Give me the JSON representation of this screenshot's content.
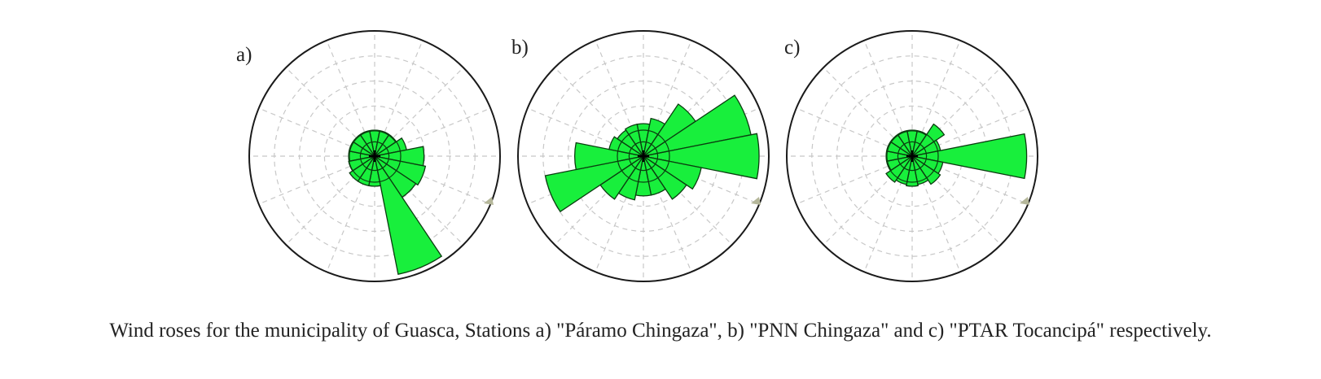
{
  "figure": {
    "caption": "Wind roses for the municipality of Guasca, Stations a) \"Páramo Chingaza\", b) \"PNN Chingaza\" and c) \"PTAR Tocancipá\" respectively."
  },
  "colors": {
    "petal_fill": "#18ef3c",
    "petal_stroke": "#0b3d10",
    "grid": "#c8c8c8",
    "outer_ring": "#1a1a1a"
  },
  "chart_data": [
    {
      "type": "wind-rose",
      "panel_label": "a)",
      "sector_count": 16,
      "grid": "dashed rings and spokes",
      "directions_deg": [
        0,
        22.5,
        45,
        67.5,
        90,
        112.5,
        135,
        157.5,
        180,
        202.5,
        225,
        247.5,
        270,
        292.5,
        315,
        337.5
      ],
      "values": [
        0.21,
        0.21,
        0.21,
        0.27,
        0.41,
        0.43,
        0.41,
        1.0,
        0.25,
        0.25,
        0.25,
        0.22,
        0.21,
        0.21,
        0.21,
        0.21
      ],
      "max_value": 1.0
    },
    {
      "type": "wind-rose",
      "panel_label": "b)",
      "sector_count": 16,
      "grid": "dashed rings and spokes",
      "directions_deg": [
        0,
        22.5,
        45,
        67.5,
        90,
        112.5,
        135,
        157.5,
        180,
        202.5,
        225,
        247.5,
        270,
        292.5,
        315,
        337.5
      ],
      "values": [
        0.27,
        0.32,
        0.52,
        0.91,
        0.96,
        0.49,
        0.43,
        0.33,
        0.33,
        0.37,
        0.43,
        0.83,
        0.57,
        0.29,
        0.26,
        0.27
      ],
      "max_value": 1.0
    },
    {
      "type": "wind-rose",
      "panel_label": "c)",
      "sector_count": 16,
      "grid": "dashed rings and spokes",
      "directions_deg": [
        0,
        22.5,
        45,
        67.5,
        90,
        112.5,
        135,
        157.5,
        180,
        202.5,
        225,
        247.5,
        270,
        292.5,
        315,
        337.5
      ],
      "values": [
        0.21,
        0.21,
        0.32,
        0.24,
        0.95,
        0.26,
        0.28,
        0.24,
        0.25,
        0.24,
        0.26,
        0.21,
        0.21,
        0.21,
        0.21,
        0.21
      ],
      "max_value": 1.0
    }
  ]
}
